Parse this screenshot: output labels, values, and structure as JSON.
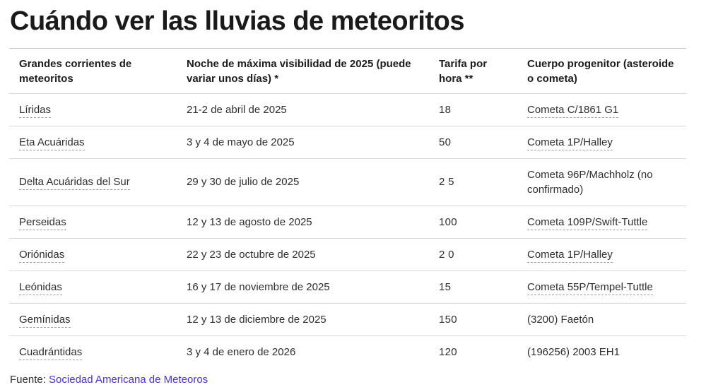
{
  "colors": {
    "link": "#4630e8",
    "title_text": "#1a1a1a",
    "body_text": "#2e2e2e",
    "divider": "#d8d8d8",
    "dashed_underline": "#9b9b9b"
  },
  "chart_data": {
    "type": "table",
    "title": "Cuándo ver las lluvias de meteoritos",
    "columns": [
      "Grandes corrientes de meteoritos",
      "Noche de máxima visibilidad de 2025 (puede variar unos días) *",
      "Tarifa por hora **",
      "Cuerpo progenitor (asteroide o cometa)"
    ],
    "rows": [
      {
        "name": "Líridas",
        "date": "21-2 de abril de 2025",
        "rate": "18",
        "parent": "Cometa C/1861 G1"
      },
      {
        "name": "Eta Acuáridas",
        "date": "3 y 4 de mayo de 2025",
        "rate": "50",
        "parent": "Cometa 1P/Halley"
      },
      {
        "name": "Delta Acuáridas del Sur",
        "date": "29 y 30 de julio de 2025",
        "rate": "2 5",
        "parent": "Cometa 96P/Machholz (no confirmado)"
      },
      {
        "name": "Perseidas",
        "date": "12 y 13 de agosto de 2025",
        "rate": "100",
        "parent": "Cometa 109P/Swift-Tuttle"
      },
      {
        "name": "Oriónidas",
        "date": "22 y 23 de octubre de 2025",
        "rate": "2 0",
        "parent": "Cometa 1P/Halley"
      },
      {
        "name": "Leónidas",
        "date": "16 y 17 de noviembre de 2025",
        "rate": "15",
        "parent": "Cometa 55P/Tempel-Tuttle"
      },
      {
        "name": "Gemínidas",
        "date": "12 y 13 de diciembre de 2025",
        "rate": "150",
        "parent": "(3200) Faetón"
      },
      {
        "name": "Cuadrántidas",
        "date": "3 y 4 de enero de 2026",
        "rate": "120",
        "parent": "(196256) 2003 EH1"
      }
    ],
    "source": {
      "label": "Fuente:",
      "link_text": "Sociedad Americana de Meteoros"
    }
  }
}
